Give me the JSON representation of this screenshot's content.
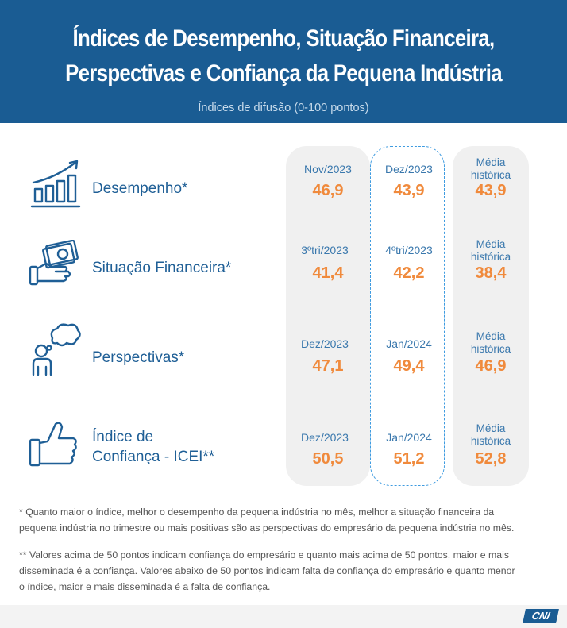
{
  "header": {
    "title_line1": "Índices de Desempenho, Situação Financeira,",
    "title_line2": "Perspectivas e Confiança da Pequena Indústria",
    "subtitle": "Índices de difusão (0-100 pontos)"
  },
  "rows": [
    {
      "label": "Desempenho*",
      "icon": "bar-chart-growth-icon",
      "period1": "Nov/2023",
      "value1": "46,9",
      "period2": "Dez/2023",
      "value2": "43,9",
      "hist_label_1": "Média",
      "hist_label_2": "histórica",
      "hist_value": "43,9"
    },
    {
      "label": "Situação Financeira*",
      "icon": "hand-with-money-icon",
      "period1": "3ºtri/2023",
      "value1": "41,4",
      "period2": "4ºtri/2023",
      "value2": "42,2",
      "hist_label_1": "Média",
      "hist_label_2": "histórica",
      "hist_value": "38,4"
    },
    {
      "label": "Perspectivas*",
      "icon": "person-thinking-icon",
      "period1": "Dez/2023",
      "value1": "47,1",
      "period2": "Jan/2024",
      "value2": "49,4",
      "hist_label_1": "Média",
      "hist_label_2": "histórica",
      "hist_value": "46,9"
    },
    {
      "label_line1": "Índice de",
      "label_line2": "Confiança - ICEI**",
      "icon": "thumbs-up-icon",
      "period1": "Dez/2023",
      "value1": "50,5",
      "period2": "Jan/2024",
      "value2": "51,2",
      "hist_label_1": "Média",
      "hist_label_2": "histórica",
      "hist_value": "52,8"
    }
  ],
  "notes": {
    "note1_line1": "* Quanto maior o índice, melhor o desempenho da pequena indústria no mês, melhor a situação financeira da",
    "note1_line2": "pequena indústria no trimestre ou mais positivas são as perspectivas do empresário da pequena indústria no mês.",
    "note2_line1": "** Valores acima de 50 pontos indicam confiança do empresário e quanto mais acima de 50 pontos, maior e mais",
    "note2_line2": "disseminada é a confiança. Valores abaixo de 50 pontos indicam falta de confiança do empresário e quanto menor",
    "note2_line3": "o índice, maior e mais disseminada é a falta de confiança."
  },
  "footer": {
    "logo_text": "CNI"
  },
  "colors": {
    "header_bg": "#1a5c93",
    "value": "#f08a3c",
    "label": "#1f5f96",
    "dashed_border": "#3e9be0"
  }
}
